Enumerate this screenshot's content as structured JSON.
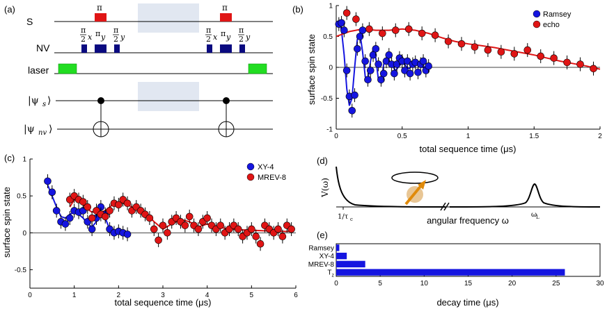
{
  "panels": {
    "a": "(a)",
    "b": "(b)",
    "c": "(c)",
    "d": "(d)",
    "e": "(e)"
  },
  "circuit": {
    "row_s": "S",
    "row_nv": "NV",
    "row_laser": "laser",
    "pi": "π",
    "pi_label": "π",
    "half_label": "π",
    "den": "2",
    "sub_x": "x",
    "sub_y": "y",
    "ket_s": "|ψs⟩",
    "ket_nv": "|ψnv⟩",
    "ket_s_main": "|ψ",
    "ket_s_sub": "s",
    "ket_nv_main": "|ψ",
    "ket_nv_sub": "nv",
    "ket_close": "⟩"
  },
  "chart_data": [
    {
      "panel": "b",
      "type": "scatter",
      "xlabel": "total sequence time (μs)",
      "ylabel": "surface spin state",
      "xlim": [
        0,
        2
      ],
      "ylim": [
        -1,
        1
      ],
      "xticks": [
        "0",
        "0.5",
        "1",
        "1.5",
        "2"
      ],
      "yticks": [
        "1",
        "0.5",
        "0",
        "-0.5",
        "-1"
      ],
      "legend": [
        "Ramsey",
        "echo"
      ],
      "series": [
        {
          "name": "Ramsey",
          "color": "#1515e0",
          "x": [
            0.02,
            0.04,
            0.06,
            0.08,
            0.1,
            0.12,
            0.14,
            0.16,
            0.18,
            0.2,
            0.22,
            0.24,
            0.26,
            0.28,
            0.3,
            0.32,
            0.34,
            0.36,
            0.38,
            0.4,
            0.42,
            0.44,
            0.46,
            0.48,
            0.5,
            0.52,
            0.54,
            0.56,
            0.58,
            0.6,
            0.62,
            0.64,
            0.66,
            0.68,
            0.7
          ],
          "y": [
            0.7,
            0.72,
            0.6,
            -0.05,
            -0.47,
            -0.7,
            -0.45,
            0.3,
            0.5,
            0.6,
            0.1,
            -0.2,
            -0.05,
            0.2,
            0.3,
            0.05,
            -0.2,
            -0.1,
            0.1,
            0.2,
            0.05,
            -0.1,
            0.05,
            0.15,
            0.1,
            -0.05,
            0.1,
            -0.1,
            0.05,
            0.08,
            -0.08,
            0.05,
            0.1,
            -0.05,
            0.02
          ],
          "fit_x": [
            0,
            0.02,
            0.04,
            0.06,
            0.08,
            0.1,
            0.12,
            0.14,
            0.16,
            0.18,
            0.2,
            0.22,
            0.24,
            0.26,
            0.28,
            0.3,
            0.32,
            0.34,
            0.36,
            0.38,
            0.4,
            0.45,
            0.5,
            0.55,
            0.6,
            0.65,
            0.7
          ],
          "fit_y": [
            0.72,
            0.75,
            0.6,
            0.2,
            -0.35,
            -0.62,
            -0.5,
            0.0,
            0.45,
            0.55,
            0.25,
            -0.15,
            -0.2,
            0.1,
            0.3,
            0.15,
            -0.2,
            -0.25,
            0.05,
            0.15,
            0.1,
            -0.05,
            0.08,
            -0.02,
            0.05,
            0.0,
            0.02
          ]
        },
        {
          "name": "echo",
          "color": "#e01515",
          "x": [
            0.08,
            0.15,
            0.25,
            0.35,
            0.45,
            0.55,
            0.65,
            0.75,
            0.85,
            0.95,
            1.05,
            1.15,
            1.25,
            1.35,
            1.45,
            1.55,
            1.65,
            1.75,
            1.85,
            1.95
          ],
          "y": [
            0.88,
            0.78,
            0.62,
            0.55,
            0.6,
            0.62,
            0.55,
            0.52,
            0.42,
            0.38,
            0.33,
            0.28,
            0.25,
            0.22,
            0.28,
            0.18,
            0.15,
            0.08,
            0.05,
            -0.02
          ],
          "fit_x": [
            0,
            0.1,
            0.2,
            0.3,
            0.4,
            0.5,
            0.6,
            0.7,
            0.8,
            0.9,
            1.0,
            1.1,
            1.2,
            1.3,
            1.4,
            1.5,
            1.6,
            1.7,
            1.8,
            1.9,
            2.0
          ],
          "fit_y": [
            0.5,
            0.58,
            0.62,
            0.6,
            0.6,
            0.62,
            0.6,
            0.55,
            0.48,
            0.42,
            0.38,
            0.35,
            0.32,
            0.28,
            0.24,
            0.2,
            0.15,
            0.1,
            0.06,
            0.02,
            -0.03
          ]
        }
      ]
    },
    {
      "panel": "c",
      "type": "scatter",
      "xlabel": "total sequence time (μs)",
      "ylabel": "surface spin state",
      "xlim": [
        0,
        6
      ],
      "ylim": [
        -0.75,
        1
      ],
      "xticks": [
        "0",
        "1",
        "2",
        "3",
        "4",
        "5",
        "6"
      ],
      "yticks": [
        "1",
        "0.5",
        "0",
        "-0.5"
      ],
      "legend": [
        "XY-4",
        "MREV-8"
      ],
      "series": [
        {
          "name": "XY-4",
          "color": "#1515e0",
          "x": [
            0.4,
            0.5,
            0.6,
            0.7,
            0.8,
            0.9,
            1.0,
            1.1,
            1.2,
            1.3,
            1.4,
            1.5,
            1.6,
            1.7,
            1.8,
            1.9,
            2.0,
            2.1,
            2.2
          ],
          "y": [
            0.7,
            0.55,
            0.3,
            0.15,
            0.12,
            0.2,
            0.3,
            0.28,
            0.3,
            0.15,
            0.05,
            0.2,
            0.35,
            0.25,
            0.05,
            0.0,
            0.02,
            0.0,
            -0.02
          ],
          "fit_x": [
            0.4,
            0.5,
            0.6,
            0.7,
            0.8,
            0.9,
            1.0,
            1.1,
            1.2,
            1.3,
            1.4,
            1.5,
            1.6,
            1.7,
            1.8,
            1.9,
            2.0,
            2.1,
            2.2
          ],
          "fit_y": [
            0.65,
            0.5,
            0.35,
            0.22,
            0.2,
            0.25,
            0.28,
            0.25,
            0.2,
            0.12,
            0.08,
            0.15,
            0.25,
            0.2,
            0.05,
            0.0,
            0.02,
            0.0,
            0.0
          ]
        },
        {
          "name": "MREV-8",
          "color": "#e01515",
          "x": [
            0.9,
            1.0,
            1.1,
            1.2,
            1.3,
            1.4,
            1.5,
            1.6,
            1.7,
            1.8,
            1.9,
            2.0,
            2.1,
            2.2,
            2.3,
            2.4,
            2.5,
            2.6,
            2.7,
            2.8,
            2.9,
            3.0,
            3.1,
            3.2,
            3.3,
            3.4,
            3.5,
            3.6,
            3.7,
            3.8,
            3.9,
            4.0,
            4.1,
            4.2,
            4.3,
            4.4,
            4.5,
            4.6,
            4.7,
            4.8,
            4.9,
            5.0,
            5.1,
            5.2,
            5.3,
            5.4,
            5.5,
            5.6,
            5.7,
            5.8,
            5.9
          ],
          "y": [
            0.45,
            0.5,
            0.45,
            0.42,
            0.35,
            0.2,
            0.3,
            0.25,
            0.22,
            0.3,
            0.4,
            0.38,
            0.45,
            0.4,
            0.3,
            0.35,
            0.3,
            0.25,
            0.2,
            0.05,
            -0.1,
            0.1,
            0.0,
            0.15,
            0.2,
            0.15,
            0.1,
            0.22,
            0.1,
            0.05,
            0.15,
            0.2,
            0.1,
            0.05,
            0.1,
            0.0,
            0.05,
            0.1,
            0.05,
            -0.05,
            0.0,
            0.05,
            -0.05,
            -0.15,
            0.1,
            0.05,
            0.0,
            0.05,
            -0.05,
            0.1,
            0.05
          ],
          "fit_x": [
            0.9,
            1.0,
            1.1,
            1.2,
            1.3,
            1.4,
            1.5,
            1.6,
            1.7,
            1.8,
            1.9,
            2.0,
            2.2,
            2.4,
            2.6,
            2.8,
            3.0,
            3.2,
            3.4,
            3.6,
            3.8,
            4.0,
            4.4,
            4.8,
            5.2,
            5.6,
            5.9
          ],
          "fit_y": [
            0.35,
            0.45,
            0.42,
            0.38,
            0.32,
            0.28,
            0.3,
            0.28,
            0.3,
            0.35,
            0.4,
            0.42,
            0.38,
            0.32,
            0.28,
            0.15,
            0.05,
            0.12,
            0.18,
            0.15,
            0.08,
            0.12,
            0.06,
            0.04,
            0.03,
            0.02,
            0.02
          ]
        }
      ]
    },
    {
      "panel": "d",
      "type": "line",
      "ylabel": "V(ω)",
      "xlabel": "angular frequency ω",
      "tick_left": "1/τc",
      "tick_right": "ωL",
      "tick_left_main": "1/τ",
      "tick_left_sub": "c",
      "tick_right_main": "ω",
      "tick_right_sub": "L"
    },
    {
      "panel": "e",
      "type": "bar",
      "xlabel": "decay time (μs)",
      "xlim": [
        0,
        30
      ],
      "xticks": [
        "0",
        "5",
        "10",
        "15",
        "20",
        "25",
        "30"
      ],
      "categories": [
        "Ramsey",
        "XY-4",
        "MREV-8",
        "Tz"
      ],
      "category_main": [
        "Ramsey",
        "XY-4",
        "MREV-8",
        "T"
      ],
      "category_sub": [
        "",
        "",
        "",
        "z"
      ],
      "values": [
        0.35,
        1.2,
        3.3,
        26
      ],
      "color": "#1515e0"
    }
  ]
}
